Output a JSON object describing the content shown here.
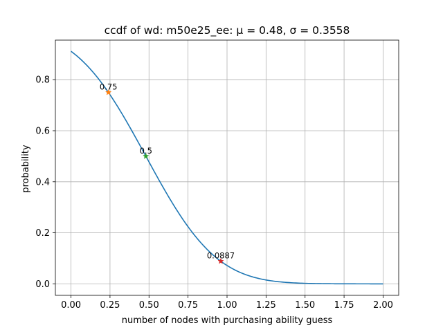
{
  "chart_data": {
    "type": "line",
    "title": "ccdf of wd: m50e25_ee: μ = 0.48, σ = 0.3558",
    "xlabel": "number of nodes with purchasing ability guess",
    "ylabel": "probability",
    "xlim": [
      -0.1,
      2.1
    ],
    "ylim": [
      -0.045,
      0.955
    ],
    "xticks": [
      0.0,
      0.25,
      0.5,
      0.75,
      1.0,
      1.25,
      1.5,
      1.75,
      2.0
    ],
    "xtick_labels": [
      "0.00",
      "0.25",
      "0.50",
      "0.75",
      "1.00",
      "1.25",
      "1.50",
      "1.75",
      "2.00"
    ],
    "yticks": [
      0.0,
      0.2,
      0.4,
      0.6,
      0.8
    ],
    "ytick_labels": [
      "0.0",
      "0.2",
      "0.4",
      "0.6",
      "0.8"
    ],
    "grid": true,
    "series": [
      {
        "color": "#1f77b4",
        "distribution": {
          "mu": 0.48,
          "sigma": 0.3558
        },
        "x_range": [
          0.0,
          2.0
        ]
      }
    ],
    "markers": [
      {
        "x": 0.24,
        "y": 0.75,
        "label": "0.75",
        "color": "#ff7f0e"
      },
      {
        "x": 0.48,
        "y": 0.5,
        "label": "0.5",
        "color": "#2ca02c"
      },
      {
        "x": 0.96,
        "y": 0.0887,
        "label": "0.0887",
        "color": "#d62728"
      }
    ]
  }
}
